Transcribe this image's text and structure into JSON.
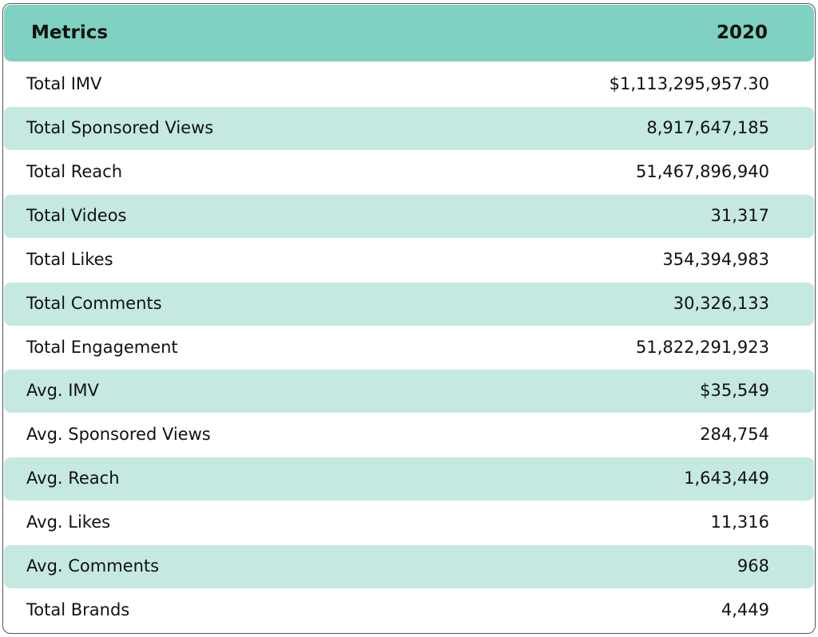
{
  "table": {
    "header": [
      "Metrics",
      "2020"
    ],
    "rows": [
      [
        "Total IMV",
        "$1,113,295,957.30"
      ],
      [
        "Total Sponsored Views",
        "8,917,647,185"
      ],
      [
        "Total Reach",
        "51,467,896,940"
      ],
      [
        "Total Videos",
        "31,317"
      ],
      [
        "Total Likes",
        "354,394,983"
      ],
      [
        "Total Comments",
        "30,326,133"
      ],
      [
        "Total Engagement",
        "51,822,291,923"
      ],
      [
        "Avg. IMV",
        "$35,549"
      ],
      [
        "Avg. Sponsored Views",
        "284,754"
      ],
      [
        "Avg. Reach",
        "1,643,449"
      ],
      [
        "Avg. Likes",
        "11,316"
      ],
      [
        "Avg. Comments",
        "968"
      ],
      [
        "Total Brands",
        "4,449"
      ]
    ]
  }
}
